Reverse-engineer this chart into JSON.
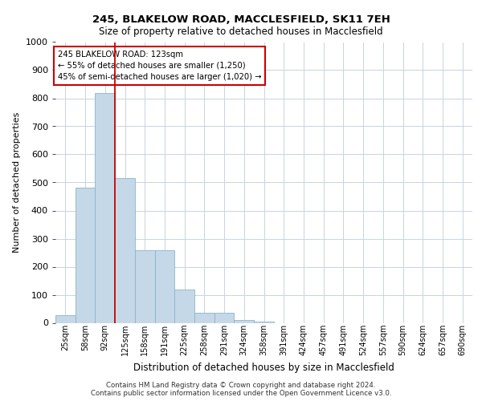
{
  "title_line1": "245, BLAKELOW ROAD, MACCLESFIELD, SK11 7EH",
  "title_line2": "Size of property relative to detached houses in Macclesfield",
  "xlabel": "Distribution of detached houses by size in Macclesfield",
  "ylabel": "Number of detached properties",
  "footnote_line1": "Contains HM Land Registry data © Crown copyright and database right 2024.",
  "footnote_line2": "Contains public sector information licensed under the Open Government Licence v3.0.",
  "categories": [
    "25sqm",
    "58sqm",
    "92sqm",
    "125sqm",
    "158sqm",
    "191sqm",
    "225sqm",
    "258sqm",
    "291sqm",
    "324sqm",
    "358sqm",
    "391sqm",
    "424sqm",
    "457sqm",
    "491sqm",
    "524sqm",
    "557sqm",
    "590sqm",
    "624sqm",
    "657sqm",
    "690sqm"
  ],
  "values": [
    28,
    480,
    820,
    515,
    260,
    260,
    120,
    35,
    35,
    10,
    5,
    0,
    0,
    0,
    0,
    0,
    0,
    0,
    0,
    0,
    0
  ],
  "bar_color": "#c5d8e8",
  "bar_edge_color": "#8ab4cc",
  "vline_x": 2.5,
  "vline_color": "#cc0000",
  "annotation_text_line1": "245 BLAKELOW ROAD: 123sqm",
  "annotation_text_line2": "← 55% of detached houses are smaller (1,250)",
  "annotation_text_line3": "45% of semi-detached houses are larger (1,020) →",
  "annotation_box_edgecolor": "#cc0000",
  "annotation_box_facecolor": "#ffffff",
  "ylim": [
    0,
    1000
  ],
  "yticks": [
    0,
    100,
    200,
    300,
    400,
    500,
    600,
    700,
    800,
    900,
    1000
  ],
  "bg_color": "#ffffff",
  "grid_color": "#c8d4de",
  "fig_width": 6.0,
  "fig_height": 5.0,
  "dpi": 100
}
